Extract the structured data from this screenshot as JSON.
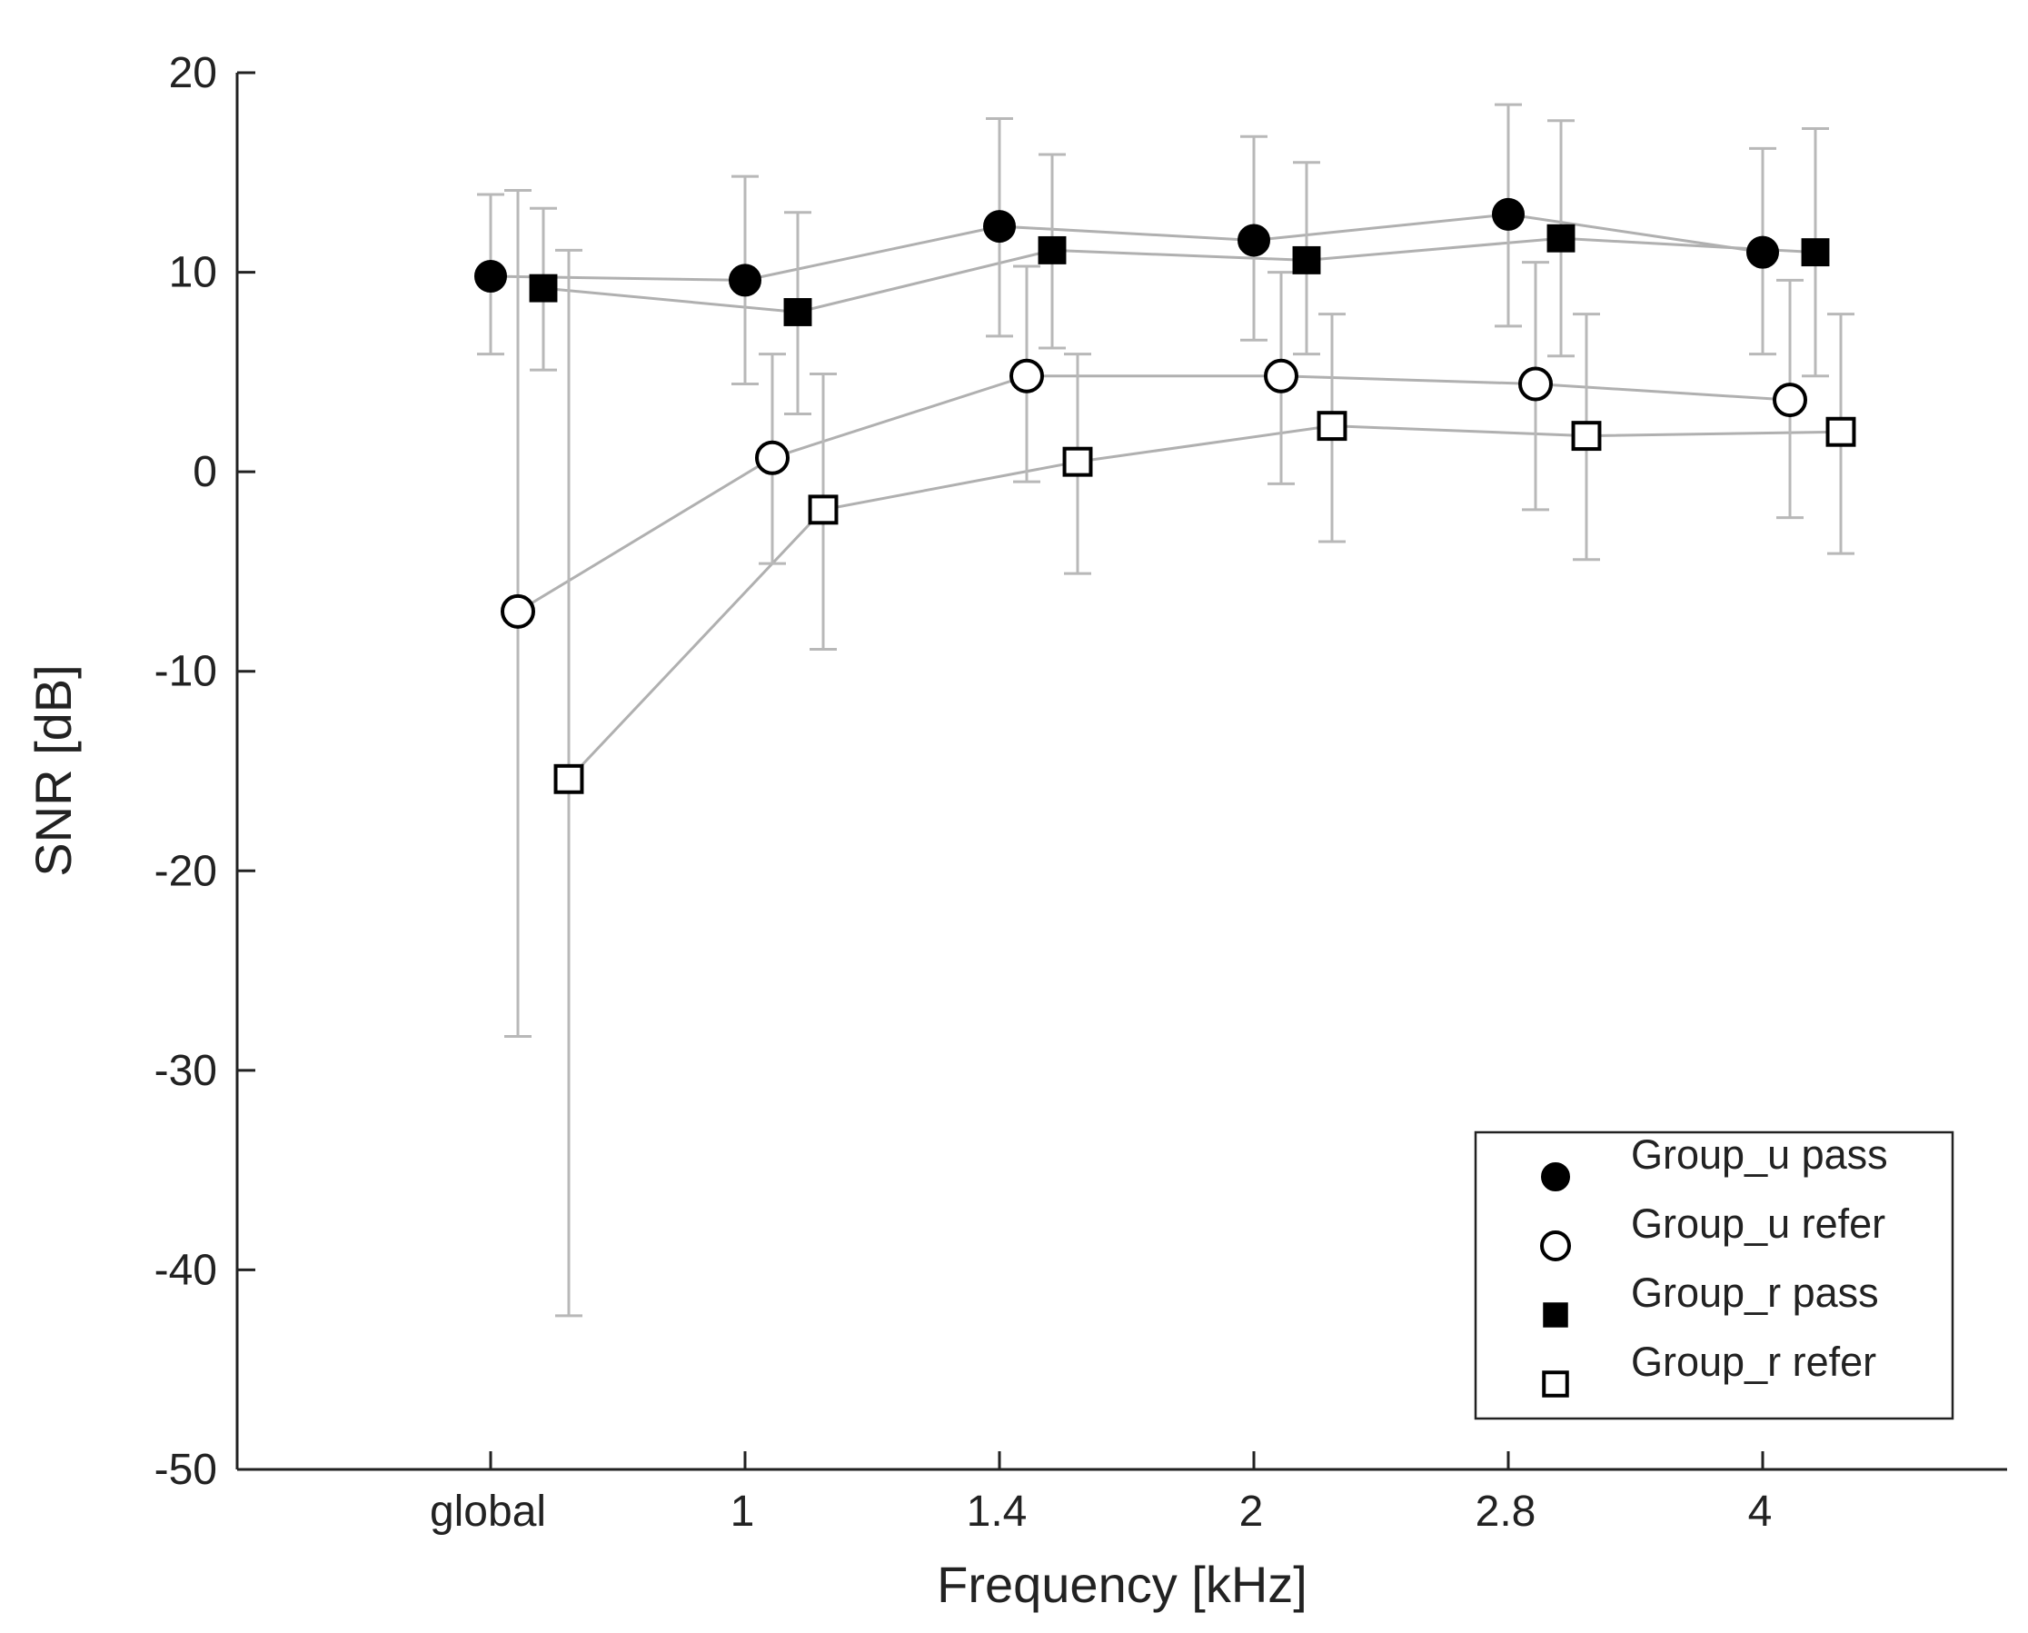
{
  "chart_data": {
    "type": "scatter",
    "title": "",
    "xlabel": "Frequency [kHz]",
    "ylabel": "SNR [dB]",
    "categories": [
      "global",
      "1",
      "1.4",
      "2",
      "2.8",
      "4"
    ],
    "ylim": [
      -50,
      20
    ],
    "yticks": [
      "20",
      "10",
      "0",
      "-10",
      "-20",
      "-30",
      "-40",
      "-50"
    ],
    "ytick_values": [
      20,
      10,
      0,
      -10,
      -20,
      -30,
      -40,
      -50
    ],
    "grid": false,
    "legend_position": "bottom-right",
    "series": [
      {
        "name": "Group_u pass",
        "marker": "circle-filled",
        "values": [
          9.8,
          9.6,
          12.3,
          11.6,
          12.9,
          11.0
        ],
        "err_low": [
          5.9,
          4.4,
          6.8,
          6.6,
          7.3,
          5.9
        ],
        "err_high": [
          13.9,
          14.8,
          17.7,
          16.8,
          18.4,
          16.2
        ]
      },
      {
        "name": "Group_u refer",
        "marker": "circle-open",
        "values": [
          -7.0,
          0.7,
          4.8,
          4.8,
          4.4,
          3.6
        ],
        "err_low": [
          -28.3,
          -4.6,
          -0.5,
          -0.6,
          -1.9,
          -2.3
        ],
        "err_high": [
          14.1,
          5.9,
          10.3,
          10.0,
          10.5,
          9.6
        ]
      },
      {
        "name": "Group_r pass",
        "marker": "square-filled",
        "values": [
          9.2,
          8.0,
          11.1,
          10.6,
          11.7,
          11.0
        ],
        "err_low": [
          5.1,
          2.9,
          6.2,
          5.9,
          5.8,
          4.8
        ],
        "err_high": [
          13.2,
          13.0,
          15.9,
          15.5,
          17.6,
          17.2
        ]
      },
      {
        "name": "Group_r refer",
        "marker": "square-open",
        "values": [
          -15.4,
          -1.9,
          0.5,
          2.3,
          1.8,
          2.0
        ],
        "err_low": [
          -42.3,
          -8.9,
          -5.1,
          -3.5,
          -4.4,
          -4.1
        ],
        "err_high": [
          11.1,
          4.9,
          5.9,
          7.9,
          7.9,
          7.9
        ]
      }
    ],
    "colors": {
      "marker": "#000000",
      "marker_fill_open": "#ffffff",
      "line": "#b0b0b0",
      "error_bar": "#b8b8b8",
      "axis": "#222222"
    }
  }
}
